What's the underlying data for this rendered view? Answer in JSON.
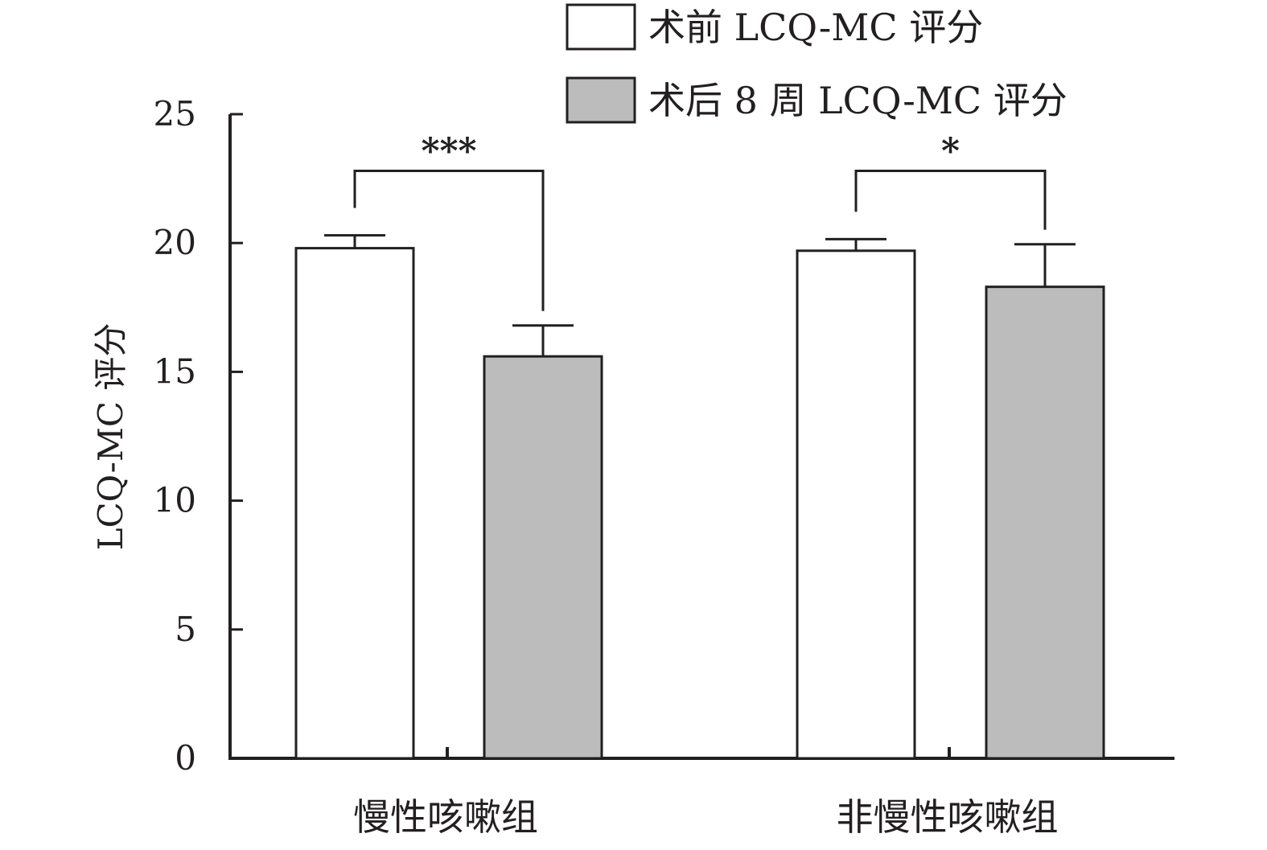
{
  "chart_data": {
    "type": "bar",
    "title": "",
    "xlabel": "",
    "ylabel": "LCQ-MC 评分",
    "ylim": [
      0,
      25
    ],
    "yticks": [
      0,
      5,
      10,
      15,
      20,
      25
    ],
    "grid": false,
    "legend_position": "top-right",
    "categories": [
      "慢性咳嗽组",
      "非慢性咳嗽组"
    ],
    "series": [
      {
        "name": "术前 LCQ-MC 评分",
        "color": "#ffffff",
        "values": [
          19.8,
          19.7
        ],
        "error": [
          0.5,
          0.45
        ]
      },
      {
        "name": "术后 8 周 LCQ-MC 评分",
        "color": "#bcbcbc",
        "values": [
          15.6,
          18.3
        ],
        "error": [
          1.2,
          1.65
        ]
      }
    ],
    "significance": [
      "***",
      "*"
    ]
  }
}
